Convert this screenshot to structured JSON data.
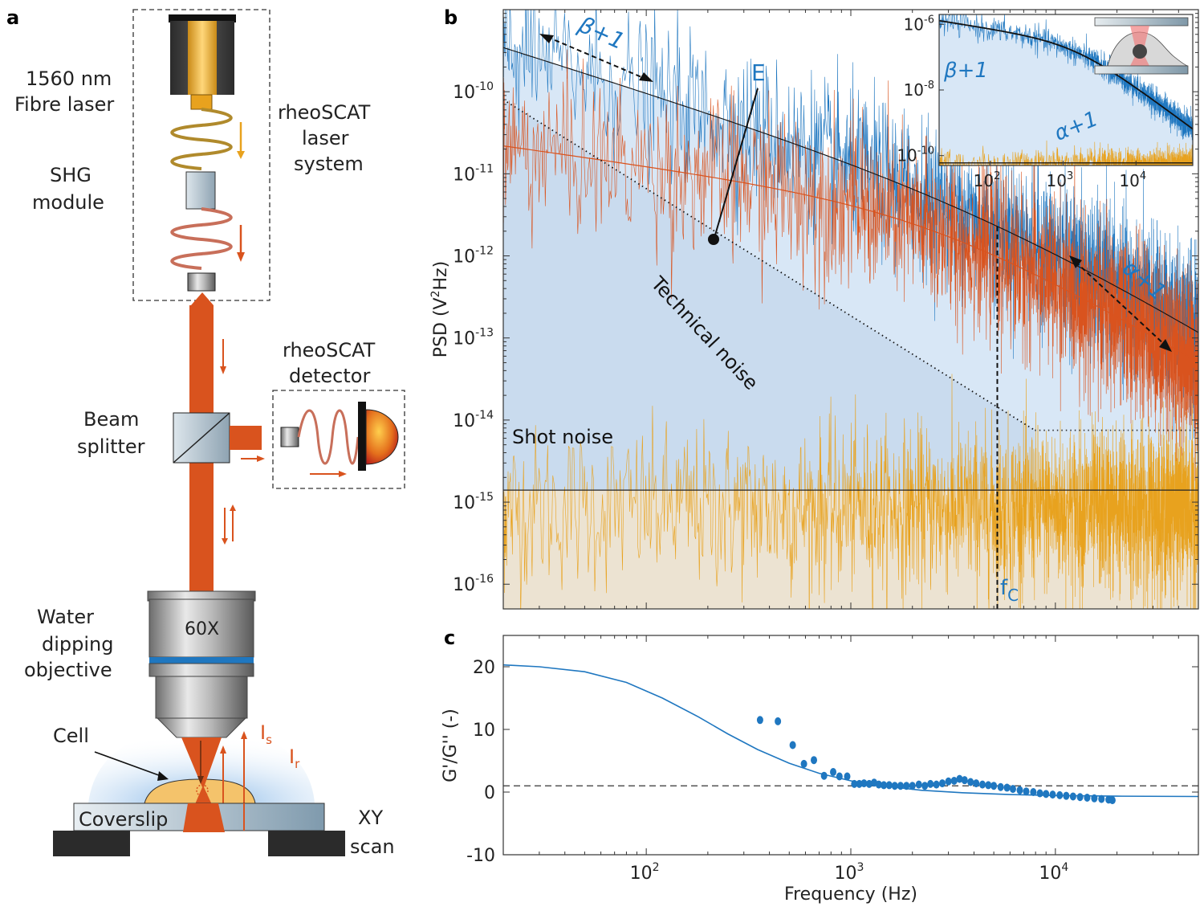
{
  "panel_a": {
    "label": "a",
    "laser_label_line1": "1560 nm",
    "laser_label_line2": "Fibre laser",
    "shg_line1": "SHG",
    "shg_line2": "module",
    "system_line1": "rheoSCAT",
    "system_line2": "laser",
    "system_line3": "system",
    "detector_line1": "rheoSCAT",
    "detector_line2": "detector",
    "bs_line1": "Beam",
    "bs_line2": "splitter",
    "objective_mag": "60X",
    "obj_line1": "Water",
    "obj_line2": "dipping",
    "obj_line3": "objective",
    "cell_label": "Cell",
    "is_label": "I",
    "is_sub": "s",
    "ir_label": "I",
    "ir_sub": "r",
    "coverslip_label": "Coverslip",
    "scan_line1": "XY",
    "scan_line2": "scan",
    "colors": {
      "laser": "#d9531e",
      "yellow": "#e8a21e",
      "blue": "#1f77c0"
    }
  },
  "chart_data": [
    {
      "panel": "b",
      "type": "line",
      "ylabel": "PSD (V",
      "ylabel_sup": "2",
      "ylabel_end": "Hz)",
      "yscale": "log",
      "xscale": "log",
      "xlim": [
        20,
        50000
      ],
      "ylim": [
        5e-17,
        1e-09
      ],
      "ytick_base": "10",
      "yticks": [
        {
          "exp": "-10",
          "value": 1e-10
        },
        {
          "exp": "-11",
          "value": 1e-11
        },
        {
          "exp": "-12",
          "value": 1e-12
        },
        {
          "exp": "-13",
          "value": 1e-13
        },
        {
          "exp": "-14",
          "value": 1e-14
        },
        {
          "exp": "-15",
          "value": 1e-15
        },
        {
          "exp": "-16",
          "value": 1e-16
        }
      ],
      "annotations": {
        "beta": "β+1",
        "alpha": "α+1",
        "E": "E",
        "technical_noise": "Technical noise",
        "shot_noise": "Shot noise",
        "fc": "f",
        "fc_sub": "C"
      },
      "fit": {
        "amplitude": 3.5e-10,
        "beta": 0.78,
        "alpha": 1.55,
        "fc": 5200,
        "f0": 20
      },
      "shot_noise_level": 7.5e-15,
      "floor_level": 1.4e-15,
      "fc_value": 5200,
      "series": [
        {
          "color": "#1f77c0"
        },
        {
          "color": "#d9531e"
        },
        {
          "color": "#e8a21e"
        }
      ],
      "inset": {
        "xlim": [
          20,
          60000
        ],
        "ylim": [
          5e-11,
          2e-06
        ],
        "ytick_base": "10",
        "yticks": [
          {
            "exp": "-6",
            "value": 1e-06
          },
          {
            "exp": "-8",
            "value": 1e-08
          },
          {
            "exp": "-10",
            "value": 1e-10
          }
        ],
        "xticks": [
          {
            "exp": "2",
            "value": 100
          },
          {
            "exp": "3",
            "value": 1000
          },
          {
            "exp": "4",
            "value": 10000
          }
        ],
        "beta": "β+1",
        "alpha": "α+1",
        "floor_level": 6e-11
      }
    },
    {
      "panel": "c",
      "type": "scatter",
      "xlabel": "Frequency (Hz)",
      "ylabel": "G'/G'' (-)",
      "xscale": "log",
      "xlim": [
        20,
        50000
      ],
      "ylim": [
        -10,
        25
      ],
      "yticks": [
        {
          "label": "20",
          "value": 20
        },
        {
          "label": "10",
          "value": 10
        },
        {
          "label": "0",
          "value": 0
        },
        {
          "label": "-10",
          "value": -10
        }
      ],
      "xticks": [
        {
          "base": "10",
          "exp": "2",
          "value": 100
        },
        {
          "base": "10",
          "exp": "3",
          "value": 1000
        },
        {
          "base": "10",
          "exp": "4",
          "value": 10000
        }
      ],
      "reference_line": 1,
      "points": [
        [
          360,
          11.5
        ],
        [
          440,
          11.3
        ],
        [
          520,
          7.5
        ],
        [
          590,
          4.5
        ],
        [
          660,
          5.1
        ],
        [
          740,
          2.6
        ],
        [
          820,
          3.2
        ],
        [
          880,
          2.5
        ],
        [
          960,
          2.5
        ],
        [
          1040,
          1.3
        ],
        [
          1100,
          1.3
        ],
        [
          1160,
          1.4
        ],
        [
          1230,
          1.3
        ],
        [
          1300,
          1.5
        ],
        [
          1370,
          1.2
        ],
        [
          1450,
          1.1
        ],
        [
          1540,
          1.1
        ],
        [
          1640,
          1.0
        ],
        [
          1750,
          1.0
        ],
        [
          1870,
          1.0
        ],
        [
          2000,
          1.0
        ],
        [
          2150,
          1.2
        ],
        [
          2300,
          1.0
        ],
        [
          2450,
          1.3
        ],
        [
          2620,
          1.2
        ],
        [
          2800,
          1.4
        ],
        [
          3000,
          1.7
        ],
        [
          3200,
          1.8
        ],
        [
          3400,
          2.1
        ],
        [
          3600,
          1.9
        ],
        [
          3850,
          1.6
        ],
        [
          4100,
          1.4
        ],
        [
          4400,
          1.2
        ],
        [
          4700,
          1.1
        ],
        [
          5000,
          1.0
        ],
        [
          5400,
          0.8
        ],
        [
          5800,
          0.7
        ],
        [
          6200,
          0.5
        ],
        [
          6700,
          0.3
        ],
        [
          7200,
          0.1
        ],
        [
          7800,
          0.0
        ],
        [
          8400,
          -0.2
        ],
        [
          9000,
          -0.3
        ],
        [
          9700,
          -0.4
        ],
        [
          10500,
          -0.5
        ],
        [
          11300,
          -0.6
        ],
        [
          12200,
          -0.7
        ],
        [
          13200,
          -0.8
        ],
        [
          14300,
          -0.9
        ],
        [
          15500,
          -1.0
        ],
        [
          16800,
          -1.1
        ],
        [
          18200,
          -1.2
        ],
        [
          19000,
          -1.3
        ]
      ],
      "fit_curve": [
        [
          20,
          20.3
        ],
        [
          30,
          20.0
        ],
        [
          50,
          19.2
        ],
        [
          80,
          17.5
        ],
        [
          120,
          15.0
        ],
        [
          180,
          12.0
        ],
        [
          250,
          9.3
        ],
        [
          350,
          6.8
        ],
        [
          500,
          4.6
        ],
        [
          700,
          3.0
        ],
        [
          1000,
          1.8
        ],
        [
          1500,
          0.9
        ],
        [
          2200,
          0.3
        ],
        [
          3500,
          -0.1
        ],
        [
          6000,
          -0.4
        ],
        [
          10000,
          -0.55
        ],
        [
          20000,
          -0.65
        ],
        [
          50000,
          -0.7
        ]
      ]
    }
  ],
  "panel_b_label": "b",
  "panel_c_label": "c"
}
